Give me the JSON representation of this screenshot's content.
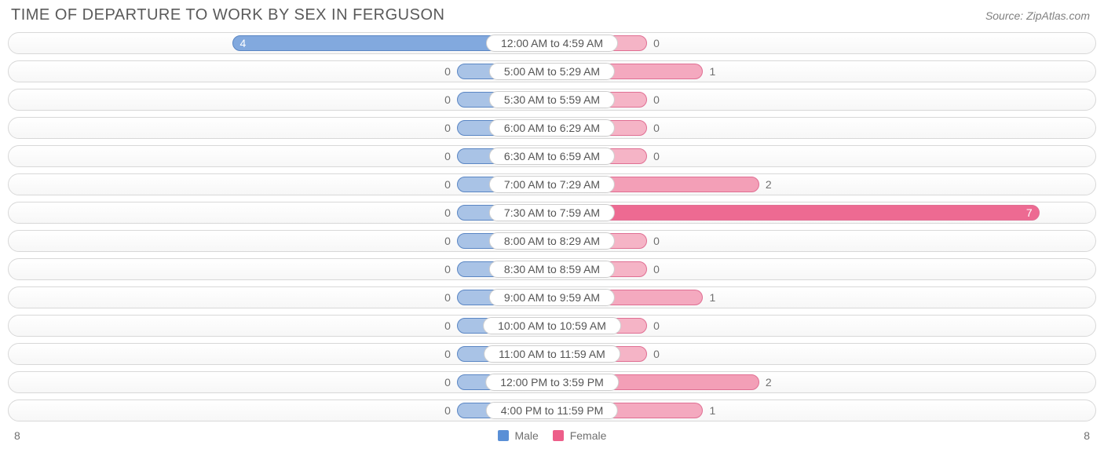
{
  "title": "TIME OF DEPARTURE TO WORK BY SEX IN FERGUSON",
  "source": "Source: ZipAtlas.com",
  "axis_max": 8,
  "axis_left_label": "8",
  "axis_right_label": "8",
  "center_label_half_width_pct": 12,
  "min_bar_pct": 5.5,
  "colors": {
    "male_fill_low": "#a9c3e6",
    "male_fill_high": "#5a8fd6",
    "male_border": "#5a86c4",
    "female_fill_low": "#f5b4c6",
    "female_fill_high": "#ec5f8a",
    "female_border": "#e06f93",
    "track_border": "#d8d8d8",
    "text_gray": "#707070",
    "title_color": "#5a5a5a"
  },
  "legend": {
    "male": {
      "label": "Male",
      "color": "#5a8fd6"
    },
    "female": {
      "label": "Female",
      "color": "#ed5e89"
    }
  },
  "rows": [
    {
      "label": "12:00 AM to 4:59 AM",
      "male": 4,
      "female": 0
    },
    {
      "label": "5:00 AM to 5:29 AM",
      "male": 0,
      "female": 1
    },
    {
      "label": "5:30 AM to 5:59 AM",
      "male": 0,
      "female": 0
    },
    {
      "label": "6:00 AM to 6:29 AM",
      "male": 0,
      "female": 0
    },
    {
      "label": "6:30 AM to 6:59 AM",
      "male": 0,
      "female": 0
    },
    {
      "label": "7:00 AM to 7:29 AM",
      "male": 0,
      "female": 2
    },
    {
      "label": "7:30 AM to 7:59 AM",
      "male": 0,
      "female": 7
    },
    {
      "label": "8:00 AM to 8:29 AM",
      "male": 0,
      "female": 0
    },
    {
      "label": "8:30 AM to 8:59 AM",
      "male": 0,
      "female": 0
    },
    {
      "label": "9:00 AM to 9:59 AM",
      "male": 0,
      "female": 1
    },
    {
      "label": "10:00 AM to 10:59 AM",
      "male": 0,
      "female": 0
    },
    {
      "label": "11:00 AM to 11:59 AM",
      "male": 0,
      "female": 0
    },
    {
      "label": "12:00 PM to 3:59 PM",
      "male": 0,
      "female": 2
    },
    {
      "label": "4:00 PM to 11:59 PM",
      "male": 0,
      "female": 1
    }
  ]
}
